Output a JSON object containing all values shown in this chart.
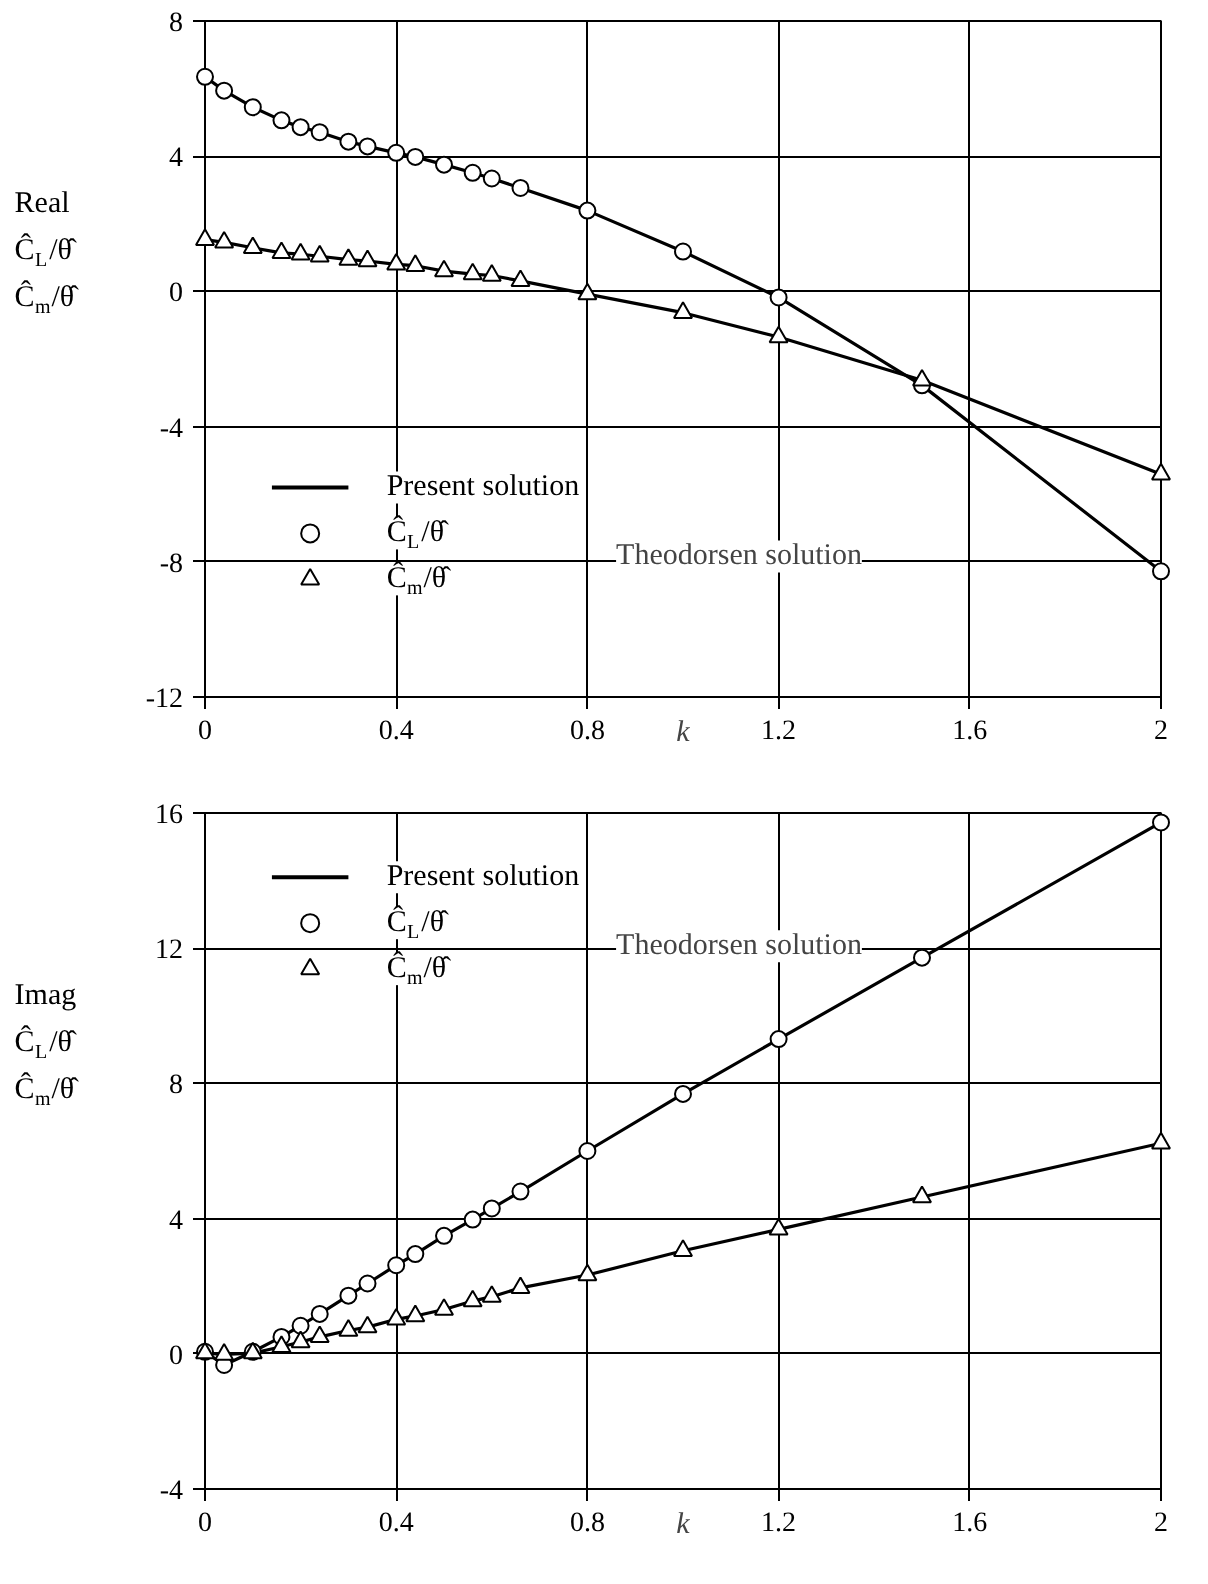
{
  "chart_data": [
    {
      "type": "line",
      "ylabel": "Real\nĈ$_{L}$/θ̂\nĈ$_{m}$/θ̂",
      "xlabel": "k",
      "x": [
        0,
        0.04,
        0.1,
        0.16,
        0.2,
        0.24,
        0.3,
        0.34,
        0.4,
        0.44,
        0.5,
        0.56,
        0.6,
        0.66,
        0.8,
        1.0,
        1.2,
        1.5,
        2.0
      ],
      "xlim": [
        0,
        2
      ],
      "xticks": [
        0,
        0.4,
        0.8,
        1.2,
        1.6,
        2
      ],
      "ylim": [
        -12,
        8
      ],
      "yticks": [
        -12,
        -8,
        -4,
        0,
        4,
        8
      ],
      "grid": true,
      "legend": "bottom left",
      "annotations": [
        "Theodorsen solution"
      ],
      "series": [
        {
          "name": "Present solution",
          "color": "#000000",
          "values": [
            6.35,
            5.94,
            5.45,
            5.06,
            4.86,
            4.71,
            4.43,
            4.29,
            4.1,
            3.98,
            3.75,
            3.51,
            3.34,
            3.06,
            2.39,
            1.18,
            -0.18,
            -2.78,
            -8.28
          ]
        },
        {
          "color": "#000000",
          "values": [
            1.53,
            1.45,
            1.29,
            1.14,
            1.1,
            1.04,
            0.94,
            0.9,
            0.8,
            0.76,
            0.6,
            0.51,
            0.47,
            0.31,
            -0.08,
            -0.63,
            -1.35,
            -2.63,
            -5.41
          ]
        },
        {
          "name": "Ĉ$_{L}$/θ̂",
          "type": "scatter",
          "marker": "circle",
          "color": "#000000",
          "values": [
            6.35,
            5.94,
            5.45,
            5.06,
            4.86,
            4.71,
            4.43,
            4.29,
            4.1,
            3.98,
            3.75,
            3.51,
            3.34,
            3.06,
            2.39,
            1.18,
            -0.18,
            -2.78,
            -8.28
          ]
        },
        {
          "name": "Ĉ$_{m}$/θ̂",
          "type": "scatter",
          "marker": "triangle",
          "color": "#000000",
          "values": [
            1.53,
            1.45,
            1.29,
            1.14,
            1.1,
            1.04,
            0.94,
            0.9,
            0.8,
            0.76,
            0.6,
            0.51,
            0.47,
            0.31,
            -0.08,
            -0.63,
            -1.35,
            -2.63,
            -5.41
          ]
        }
      ]
    },
    {
      "type": "line",
      "ylabel": "Imag\nĈ$_{L}$/θ̂\nĈ$_{m}$/θ̂",
      "xlabel": "k",
      "x": [
        0,
        0.04,
        0.1,
        0.16,
        0.2,
        0.24,
        0.3,
        0.34,
        0.4,
        0.44,
        0.5,
        0.56,
        0.6,
        0.66,
        0.8,
        1.0,
        1.2,
        1.5,
        2.0
      ],
      "xlim": [
        0,
        2
      ],
      "xticks": [
        0,
        0.4,
        0.8,
        1.2,
        1.6,
        2
      ],
      "ylim": [
        -4,
        16
      ],
      "yticks": [
        -4,
        0,
        4,
        8,
        12,
        16
      ],
      "grid": true,
      "legend": "top left",
      "annotations": [
        "Theodorsen solution"
      ],
      "series": [
        {
          "name": "Present solution",
          "color": "#000000",
          "values": [
            0.06,
            -0.33,
            0.06,
            0.5,
            0.83,
            1.18,
            1.72,
            2.08,
            2.62,
            2.95,
            3.49,
            3.97,
            4.3,
            4.8,
            6.0,
            7.69,
            9.31,
            11.72,
            15.72
          ]
        },
        {
          "color": "#000000",
          "values": [
            0.02,
            -0.02,
            0.02,
            0.21,
            0.35,
            0.5,
            0.69,
            0.79,
            1.02,
            1.12,
            1.31,
            1.56,
            1.69,
            1.95,
            2.33,
            3.05,
            3.68,
            4.64,
            6.23
          ]
        },
        {
          "name": "Ĉ$_{L}$/θ̂",
          "type": "scatter",
          "marker": "circle",
          "color": "#000000",
          "values": [
            0.06,
            -0.33,
            0.06,
            0.5,
            0.83,
            1.18,
            1.72,
            2.08,
            2.62,
            2.95,
            3.49,
            3.97,
            4.3,
            4.8,
            6.0,
            7.69,
            9.31,
            11.72,
            15.72
          ]
        },
        {
          "name": "Ĉ$_{m}$/θ̂",
          "type": "scatter",
          "marker": "triangle",
          "color": "#000000",
          "values": [
            0.02,
            -0.02,
            0.02,
            0.21,
            0.35,
            0.5,
            0.69,
            0.79,
            1.02,
            1.12,
            1.31,
            1.56,
            1.69,
            1.95,
            2.33,
            3.05,
            3.68,
            4.64,
            6.23
          ]
        }
      ]
    }
  ]
}
